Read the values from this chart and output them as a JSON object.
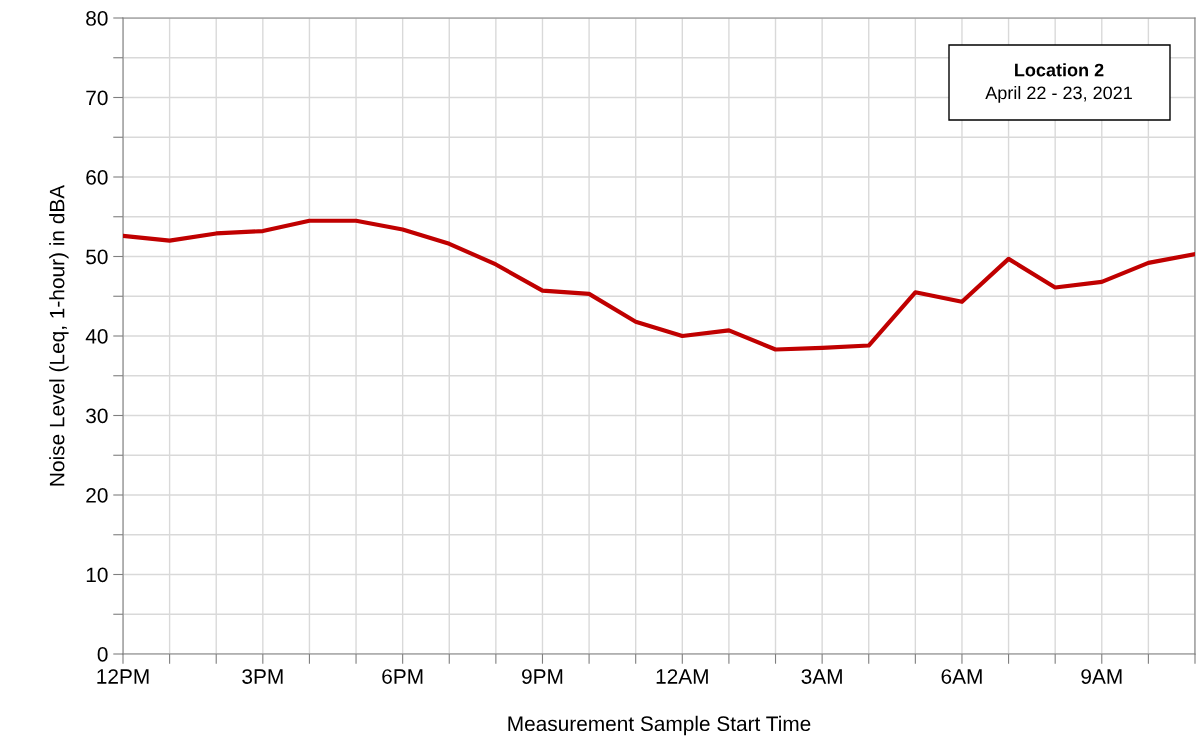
{
  "chart_data": {
    "type": "line",
    "title": "Location 2",
    "subtitle": "April 22 - 23, 2021",
    "xlabel": "Measurement Sample Start Time",
    "ylabel": "Noise Level (Leq, 1-hour) in dBA",
    "categories": [
      "12PM",
      null,
      null,
      "3PM",
      null,
      null,
      "6PM",
      null,
      null,
      "9PM",
      null,
      null,
      "12AM",
      null,
      null,
      "3AM",
      null,
      null,
      "6AM",
      null,
      null,
      "9AM",
      null,
      null
    ],
    "series": [
      {
        "color": "#c00000",
        "values": [
          52.6,
          52.0,
          52.9,
          53.2,
          54.5,
          54.5,
          53.4,
          51.6,
          49.0,
          45.7,
          45.3,
          41.8,
          40.0,
          40.7,
          38.3,
          38.5,
          38.8,
          45.5,
          44.3,
          49.7,
          46.1,
          46.8,
          49.2,
          50.3
        ]
      }
    ],
    "ylim": [
      0,
      80
    ],
    "yticks": [
      0,
      {
        "value": 5,
        "label": null
      },
      10,
      {
        "value": 15,
        "label": null
      },
      20,
      {
        "value": 25,
        "label": null
      },
      30,
      {
        "value": 35,
        "label": null
      },
      40,
      {
        "value": 45,
        "label": null
      },
      50,
      {
        "value": 55,
        "label": null
      },
      60,
      {
        "value": 65,
        "label": null
      },
      70,
      {
        "value": 75,
        "label": null
      },
      80
    ],
    "grid": true,
    "marker": "none",
    "line_style": "solid"
  }
}
